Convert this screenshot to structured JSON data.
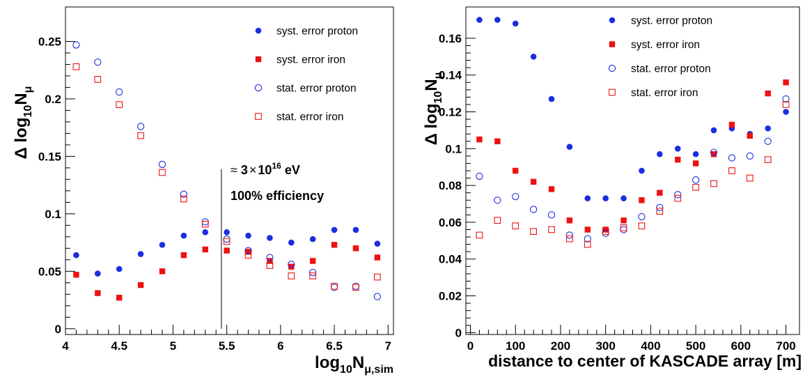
{
  "chart_data": [
    {
      "type": "scatter",
      "title": "",
      "ylabel": {
        "pre": "Δ log",
        "sub": "10",
        "main": "N",
        "msub": "μ"
      },
      "xlabel": {
        "pre": "log",
        "sub": "10",
        "main": "N",
        "msub": "μ,sim"
      },
      "xlim": [
        4,
        7.05
      ],
      "ylim": [
        -0.005,
        0.28
      ],
      "xticks": [
        4,
        4.5,
        5,
        5.5,
        6,
        6.5,
        7
      ],
      "xtick_labels": [
        "4",
        "4.5",
        "5",
        "5.5",
        "6",
        "6.5",
        "7"
      ],
      "yticks": [
        0,
        0.05,
        0.1,
        0.15,
        0.2,
        0.25
      ],
      "ytick_labels": [
        "0",
        "0.05",
        "0.1",
        "0.15",
        "0.2",
        "0.25"
      ],
      "grid": false,
      "legend_position": "top-right",
      "colors": {
        "proton": "#1a2ee0",
        "iron": "#ee1111"
      },
      "x": [
        4.1,
        4.3,
        4.5,
        4.7,
        4.9,
        5.1,
        5.3,
        5.5,
        5.7,
        5.9,
        6.1,
        6.3,
        6.5,
        6.7,
        6.9
      ],
      "series": [
        {
          "name": "syst. error proton",
          "marker": "filled-circle",
          "color": "#1a2ee0",
          "values": [
            0.064,
            0.048,
            0.052,
            0.065,
            0.073,
            0.081,
            0.084,
            0.084,
            0.081,
            0.079,
            0.075,
            0.078,
            0.086,
            0.086,
            0.074
          ]
        },
        {
          "name": "syst. error iron",
          "marker": "filled-square",
          "color": "#ee1111",
          "values": [
            0.047,
            0.031,
            0.027,
            0.038,
            0.05,
            0.064,
            0.069,
            0.068,
            0.067,
            0.059,
            0.054,
            0.059,
            0.073,
            0.07,
            0.062
          ]
        },
        {
          "name": "stat. error proton",
          "marker": "open-circle",
          "color": "#1a2ee0",
          "values": [
            0.247,
            0.232,
            0.206,
            0.176,
            0.143,
            0.117,
            0.093,
            0.078,
            0.068,
            0.062,
            0.056,
            0.049,
            0.036,
            0.037,
            0.028
          ]
        },
        {
          "name": "stat. error iron",
          "marker": "open-square",
          "color": "#ee1111",
          "values": [
            0.228,
            0.217,
            0.195,
            0.168,
            0.136,
            0.113,
            0.091,
            0.076,
            0.064,
            0.055,
            0.046,
            0.046,
            0.037,
            0.036,
            0.045
          ]
        }
      ],
      "annotations": {
        "vline_x": 5.45,
        "vline_y": [
          0,
          0.139
        ],
        "energy": {
          "approx": "≈",
          "mantissa": "3",
          "times": "×",
          "base": "10",
          "exponent": "16",
          "unit": "eV"
        },
        "efficiency": "100% efficiency"
      }
    },
    {
      "type": "scatter",
      "title": "",
      "ylabel": {
        "pre": "Δ log",
        "sub": "10",
        "main": "N",
        "msub": "μ"
      },
      "xlabel": {
        "text": "distance to center of KASCADE array [m]"
      },
      "xlim": [
        -10,
        730
      ],
      "ylim": [
        -0.001,
        0.177
      ],
      "xticks": [
        0,
        100,
        200,
        300,
        400,
        500,
        600,
        700
      ],
      "xtick_labels": [
        "0",
        "100",
        "200",
        "300",
        "400",
        "500",
        "600",
        "700"
      ],
      "yticks": [
        0,
        0.02,
        0.04,
        0.06,
        0.08,
        0.1,
        0.12,
        0.14,
        0.16
      ],
      "ytick_labels": [
        "0",
        "0.02",
        "0.04",
        "0.06",
        "0.08",
        "0.1",
        "0.12",
        "0.14",
        "0.16"
      ],
      "grid": false,
      "legend_position": "top-center",
      "colors": {
        "proton": "#1a2ee0",
        "iron": "#ee1111"
      },
      "x": [
        20,
        60,
        100,
        140,
        180,
        220,
        260,
        300,
        340,
        380,
        420,
        460,
        500,
        540,
        580,
        620,
        660,
        700
      ],
      "series": [
        {
          "name": "syst. error proton",
          "marker": "filled-circle",
          "color": "#1a2ee0",
          "values": [
            0.17,
            0.17,
            0.168,
            0.15,
            0.127,
            0.101,
            0.073,
            0.073,
            0.073,
            0.088,
            0.097,
            0.1,
            0.097,
            0.11,
            0.111,
            0.108,
            0.111,
            0.12
          ]
        },
        {
          "name": "syst. error iron",
          "marker": "filled-square",
          "color": "#ee1111",
          "values": [
            0.105,
            0.104,
            0.088,
            0.082,
            0.078,
            0.061,
            0.056,
            0.056,
            0.061,
            0.072,
            0.076,
            0.094,
            0.092,
            0.097,
            0.113,
            0.107,
            0.13,
            0.136
          ]
        },
        {
          "name": "stat. error proton",
          "marker": "open-circle",
          "color": "#1a2ee0",
          "values": [
            0.085,
            0.072,
            0.074,
            0.067,
            0.064,
            0.053,
            0.051,
            0.054,
            0.056,
            0.063,
            0.068,
            0.075,
            0.083,
            0.098,
            0.095,
            0.096,
            0.104,
            0.127
          ]
        },
        {
          "name": "stat. error iron",
          "marker": "open-square",
          "color": "#ee1111",
          "values": [
            0.053,
            0.061,
            0.058,
            0.055,
            0.056,
            0.051,
            0.048,
            0.055,
            0.057,
            0.058,
            0.066,
            0.073,
            0.079,
            0.081,
            0.088,
            0.084,
            0.094,
            0.124
          ]
        }
      ]
    }
  ]
}
